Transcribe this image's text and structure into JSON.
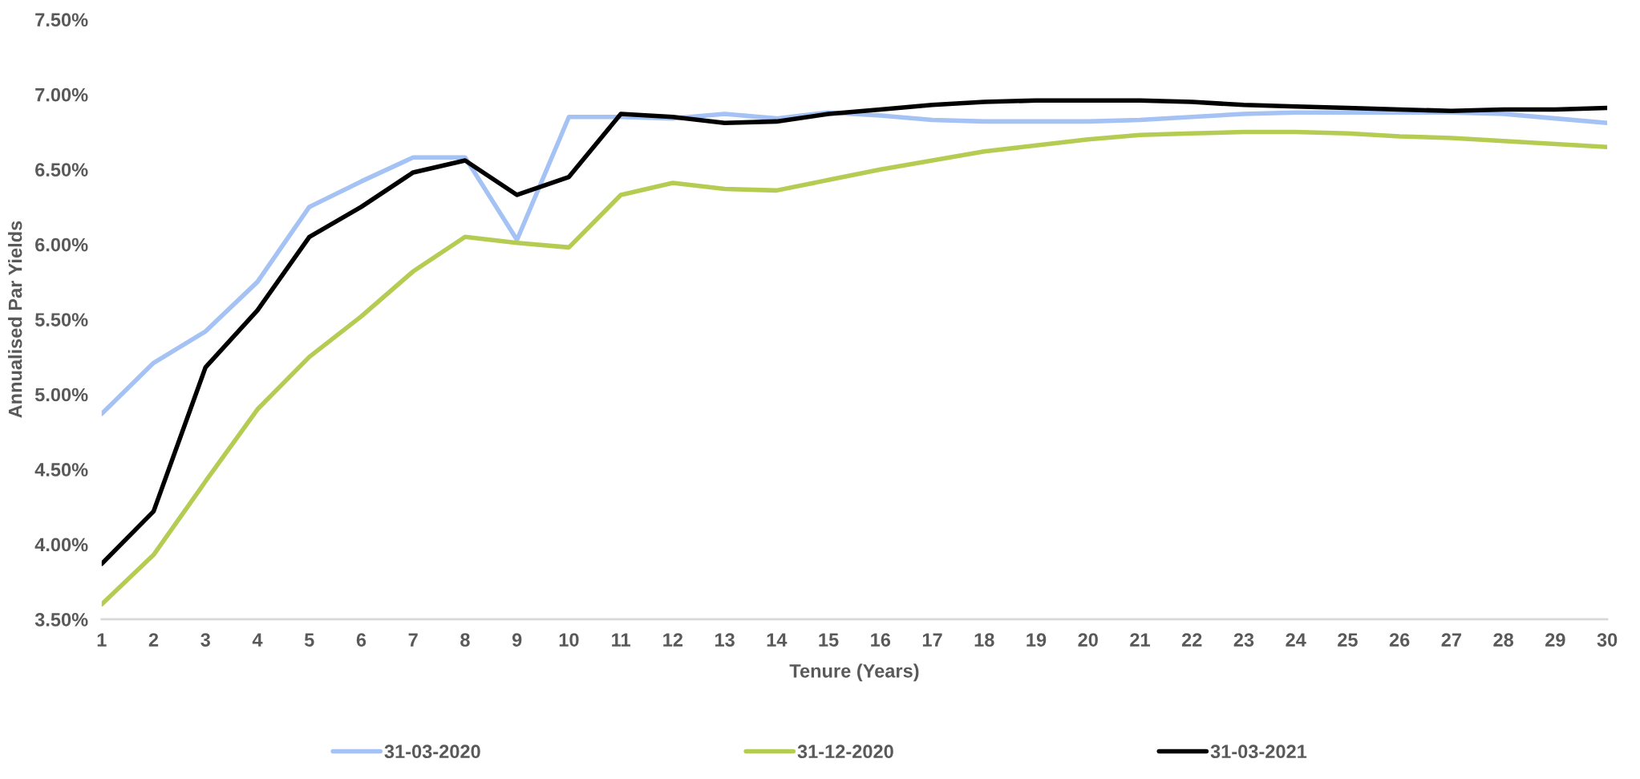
{
  "chart_data": {
    "type": "line",
    "xlabel": "Tenure (Years)",
    "ylabel": "Annualised Par Yields",
    "categories": [
      "1",
      "2",
      "3",
      "4",
      "5",
      "6",
      "7",
      "8",
      "9",
      "10",
      "11",
      "12",
      "13",
      "14",
      "15",
      "16",
      "17",
      "18",
      "19",
      "20",
      "21",
      "22",
      "23",
      "24",
      "25",
      "26",
      "27",
      "28",
      "29",
      "30"
    ],
    "series": [
      {
        "name": "31-03-2020",
        "color": "#a4c2f4",
        "values": [
          4.87,
          5.21,
          5.42,
          5.75,
          6.25,
          6.42,
          6.58,
          6.58,
          6.03,
          6.85,
          6.85,
          6.84,
          6.87,
          6.84,
          6.88,
          6.86,
          6.83,
          6.82,
          6.82,
          6.82,
          6.83,
          6.85,
          6.87,
          6.88,
          6.88,
          6.88,
          6.88,
          6.87,
          6.84,
          6.81
        ]
      },
      {
        "name": "31-12-2020",
        "color": "#b5cc52",
        "values": [
          3.6,
          3.93,
          4.42,
          4.9,
          5.25,
          5.52,
          5.82,
          6.05,
          6.01,
          5.98,
          6.33,
          6.41,
          6.37,
          6.36,
          6.43,
          6.5,
          6.56,
          6.62,
          6.66,
          6.7,
          6.73,
          6.74,
          6.75,
          6.75,
          6.74,
          6.72,
          6.71,
          6.69,
          6.67,
          6.65
        ]
      },
      {
        "name": "31-03-2021",
        "color": "#000000",
        "values": [
          3.87,
          4.22,
          5.18,
          5.56,
          6.05,
          6.25,
          6.48,
          6.56,
          6.33,
          6.45,
          6.87,
          6.85,
          6.81,
          6.82,
          6.87,
          6.9,
          6.93,
          6.95,
          6.96,
          6.96,
          6.96,
          6.95,
          6.93,
          6.92,
          6.91,
          6.9,
          6.89,
          6.9,
          6.9,
          6.91
        ]
      }
    ],
    "ylim": [
      3.5,
      7.5
    ],
    "yticks": [
      {
        "value": 3.5,
        "label": "3.50%"
      },
      {
        "value": 4.0,
        "label": "4.00%"
      },
      {
        "value": 4.5,
        "label": "4.50%"
      },
      {
        "value": 5.0,
        "label": "5.00%"
      },
      {
        "value": 5.5,
        "label": "5.50%"
      },
      {
        "value": 6.0,
        "label": "6.00%"
      },
      {
        "value": 6.5,
        "label": "6.50%"
      },
      {
        "value": 7.0,
        "label": "7.00%"
      },
      {
        "value": 7.5,
        "label": "7.50%"
      }
    ],
    "legend": "bottom",
    "grid": false,
    "marker": "none",
    "line_style": "solid"
  }
}
